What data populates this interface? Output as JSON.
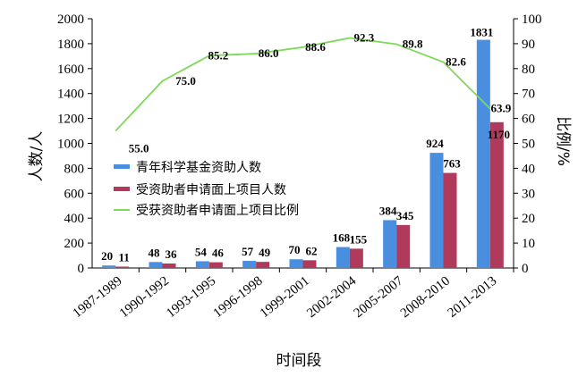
{
  "chart_data": {
    "type": "bar",
    "categories": [
      "1987-1989",
      "1990-1992",
      "1993-1995",
      "1996-1998",
      "1999-2001",
      "2002-2004",
      "2005-2007",
      "2008-2010",
      "2011-2013"
    ],
    "series": [
      {
        "name": "青年科学基金资助人数",
        "kind": "bar",
        "axis": "left",
        "color": "#4a8ee0",
        "values": [
          20,
          48,
          54,
          57,
          70,
          168,
          384,
          924,
          1831
        ]
      },
      {
        "name": "受资助者申请面上项目人数",
        "kind": "bar",
        "axis": "left",
        "color": "#b03a5b",
        "values": [
          11,
          36,
          46,
          49,
          62,
          155,
          345,
          763,
          1170
        ]
      },
      {
        "name": "受获资助者申请面上项目比例",
        "kind": "line",
        "axis": "right",
        "color": "#7ed957",
        "values": [
          55.0,
          75.0,
          85.2,
          86.0,
          88.6,
          92.3,
          89.8,
          82.6,
          63.9
        ]
      }
    ],
    "line_labels": [
      "55.0",
      "75.0",
      "85.2",
      "86.0",
      "88.6",
      "92.3",
      "89.8",
      "82.6",
      "63.9"
    ],
    "xlabel": "时间段",
    "ylabel": "人数/人",
    "y2label": "比例/%",
    "ylim": [
      0,
      2000
    ],
    "y2lim": [
      0,
      100
    ],
    "yticks": [
      0,
      200,
      400,
      600,
      800,
      1000,
      1200,
      1400,
      1600,
      1800,
      2000
    ],
    "y2ticks": [
      0,
      10,
      20,
      30,
      40,
      50,
      60,
      70,
      80,
      90,
      100
    ],
    "grid": false,
    "legend": "center-left"
  }
}
